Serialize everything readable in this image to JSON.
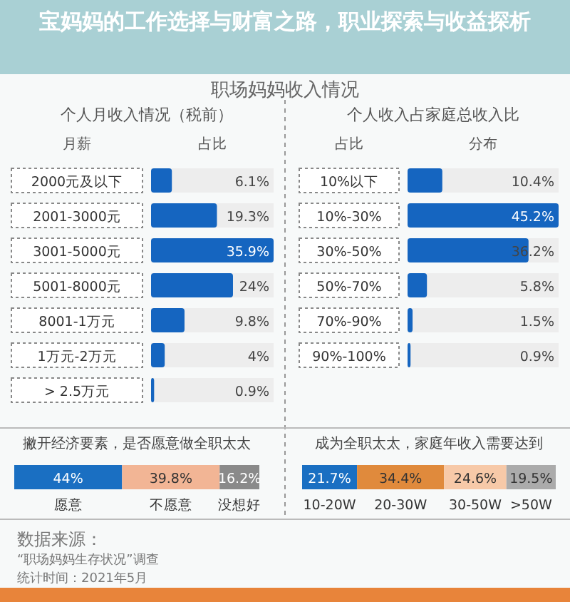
{
  "chart_data": [
    {
      "type": "bar",
      "orientation": "horizontal",
      "title": "个人月收入情况（税前）",
      "ylabel": "月薪",
      "xlabel": "占比",
      "annotations": [
        "宝妈妈的工作选择与财富之路，职业探索与收益探析",
        "职场妈妈收入情况"
      ],
      "categories": [
        "2000元及以下",
        "2001-3000元",
        "3001-5000元",
        "5001-8000元",
        "8001-1万元",
        "1万元-2万元",
        "> 2.5万元"
      ],
      "values": [
        6.1,
        19.3,
        35.9,
        24,
        9.8,
        4,
        0.9
      ],
      "value_labels": [
        "6.1%",
        "19.3%",
        "35.9%",
        "24%",
        "9.8%",
        "4%",
        "0.9%"
      ],
      "color": "#1565c0"
    },
    {
      "type": "bar",
      "orientation": "horizontal",
      "title": "个人收入占家庭总收入比",
      "ylabel": "占比",
      "xlabel": "分布",
      "categories": [
        "10%以下",
        "10%-30%",
        "30%-50%",
        "50%-70%",
        "70%-90%",
        "90%-100%"
      ],
      "values": [
        10.4,
        45.2,
        36.2,
        5.8,
        1.5,
        0.9
      ],
      "value_labels": [
        "10.4%",
        "45.2%",
        "36.2%",
        "5.8%",
        "1.5%",
        "0.9%"
      ],
      "color": "#1565c0"
    },
    {
      "type": "bar",
      "orientation": "horizontal",
      "stacked": true,
      "title": "撇开经济要素，是否愿意做全职太太",
      "annotations": [
        "数据来源：",
        "“职场妈妈生存状况”调查",
        "统计时间：2021年5月"
      ],
      "categories": [
        null
      ],
      "series": [
        {
          "name": "愿意",
          "color": "#1a6fc2",
          "values": [
            44
          ],
          "value_labels": [
            "44%"
          ]
        },
        {
          "name": "不愿意",
          "color": "#f2b595",
          "values": [
            39.8
          ],
          "value_labels": [
            "39.8%"
          ]
        },
        {
          "name": "没想好",
          "color": "#8a8a8a",
          "values": [
            16.2
          ],
          "value_labels": [
            "16.2%"
          ]
        }
      ]
    },
    {
      "type": "bar",
      "orientation": "horizontal",
      "stacked": true,
      "title": "成为全职太太，家庭年收入需要达到",
      "categories": [
        null
      ],
      "series": [
        {
          "name": "10-20W",
          "color": "#1a6fc2",
          "values": [
            21.7
          ],
          "value_labels": [
            "21.7%"
          ]
        },
        {
          "name": "20-30W",
          "color": "#e08a3c",
          "values": [
            34.4
          ],
          "value_labels": [
            "34.4%"
          ]
        },
        {
          "name": "30-50W",
          "color": "#f7c9a8",
          "values": [
            24.6
          ],
          "value_labels": [
            "24.6%"
          ]
        },
        {
          "name": ">50W",
          "color": "#ababab",
          "values": [
            19.5
          ],
          "value_labels": [
            "19.5%"
          ]
        }
      ]
    }
  ]
}
